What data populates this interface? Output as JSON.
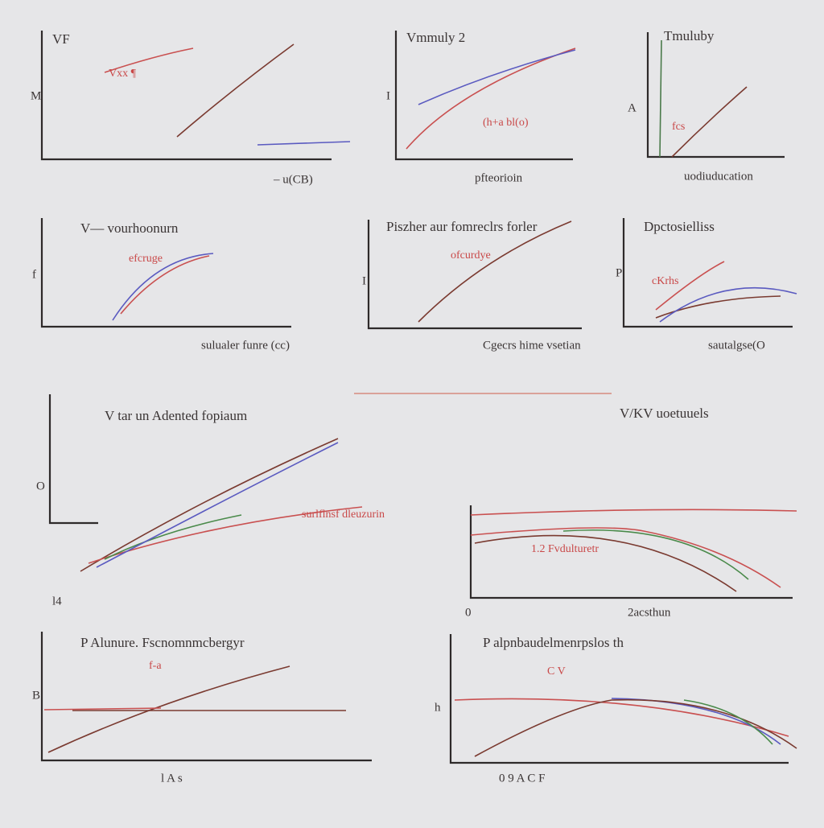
{
  "panels": [
    {
      "title": "VF",
      "y_label": "M",
      "x_label": "– u(CB)",
      "annotation": "Vxx ¶"
    },
    {
      "title": "Vmmuly 2",
      "y_label": "I",
      "x_label": "pfteorioin",
      "annotation": "(h+a bl(o)"
    },
    {
      "title": "Tmuluby",
      "y_label": "A",
      "x_label": "uodiuducation",
      "annotation": "fcs"
    },
    {
      "title": "V— vourhoonurn",
      "y_label": "f",
      "x_label": "sulualer funre (cc)",
      "annotation": "efcruge"
    },
    {
      "title": "Piszher aur fomreclrs forler",
      "y_label": "I",
      "x_label": "Cgecrs hime vsetian",
      "annotation": "ofcurdye"
    },
    {
      "title": "Dpctosielliss",
      "y_label": "P",
      "x_label": "sautalgse(O",
      "annotation": "cKrhs"
    },
    {
      "title": "V tar un Adented fopiaum",
      "y_label": "O",
      "x_label": "l4",
      "annotation": "surlflnsf dleuzurin"
    },
    {
      "title": "V/KV uoetuuels",
      "y_label": "0",
      "x_label": "2acsthun",
      "annotation": "1.2 Fvdulturetr"
    },
    {
      "title": "P Alunure. Fscnomnmcbergyr",
      "y_label": "B",
      "x_label": "l A s",
      "annotation": "f-a"
    },
    {
      "title": "P alpnbaudelmenrpslos th",
      "y_label": "h",
      "x_label": "0 9 A C F",
      "annotation": "C V"
    }
  ]
}
